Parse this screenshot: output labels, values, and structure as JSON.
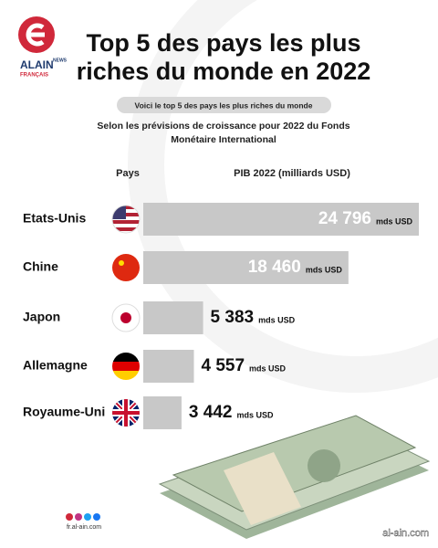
{
  "logo": {
    "brand": "ALAIN",
    "tag": "NEWS",
    "edition": "FRANÇAIS"
  },
  "chart_data": {
    "type": "bar",
    "title": "Top 5 des pays les plus riches du monde en 2022",
    "subtitle": "Voici le top 5 des pays les plus riches du monde",
    "note": "Selon les prévisions de croissance pour 2022 du Fonds Monétaire International",
    "category_header": "Pays",
    "value_header": "PIB 2022 (milliards USD)",
    "categories": [
      "Etats-Unis",
      "Chine",
      "Japon",
      "Allemagne",
      "Royaume-Uni"
    ],
    "values": [
      24796,
      18460,
      5383,
      4557,
      3442
    ],
    "value_labels": [
      "24 796",
      "18 460",
      "5 383",
      "4 557",
      "3 442"
    ],
    "unit": "mds USD",
    "color": "#c8c8c8"
  },
  "footer": {
    "site": "fr.al-ain.com",
    "watermark": "al-ain.com"
  }
}
